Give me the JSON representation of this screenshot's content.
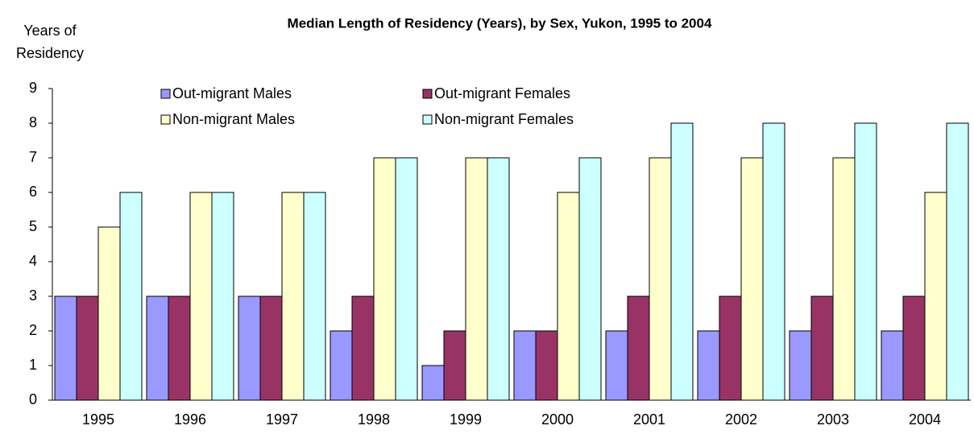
{
  "chart_data": {
    "type": "bar",
    "title": "Median Length of Residency (Years), by Sex, Yukon, 1995 to 2004",
    "ylabel": "Years of Residency",
    "categories": [
      "1995",
      "1996",
      "1997",
      "1998",
      "1999",
      "2000",
      "2001",
      "2002",
      "2003",
      "2004"
    ],
    "series": [
      {
        "name": "Out-migrant Males",
        "color": "#9999ff",
        "values": [
          3,
          3,
          3,
          2,
          1,
          2,
          2,
          2,
          2,
          2
        ]
      },
      {
        "name": "Out-migrant Females",
        "color": "#993366",
        "values": [
          3,
          3,
          3,
          3,
          2,
          2,
          3,
          3,
          3,
          3
        ]
      },
      {
        "name": "Non-migrant Males",
        "color": "#ffffcc",
        "values": [
          5,
          6,
          6,
          7,
          7,
          6,
          7,
          7,
          7,
          6
        ]
      },
      {
        "name": "Non-migrant Females",
        "color": "#ccffff",
        "values": [
          6,
          6,
          6,
          7,
          7,
          7,
          8,
          8,
          8,
          8
        ]
      }
    ],
    "ylim": [
      0,
      9
    ],
    "yticks": [
      0,
      1,
      2,
      3,
      4,
      5,
      6,
      7,
      8,
      9
    ],
    "grid": false
  }
}
